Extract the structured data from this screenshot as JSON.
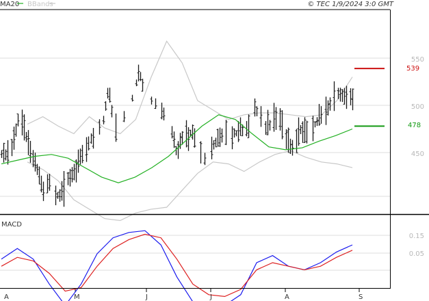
{
  "header": {
    "legend_ma": "MA20",
    "legend_bb": "BBands",
    "copyright": "© TEC 1/9/2024 3:0 GMT"
  },
  "colors": {
    "price_bars": "#1a1a1a",
    "ma20": "#22b022",
    "bbands": "#c8c8c8",
    "macd": "#1a1aee",
    "signal": "#dd2020",
    "resistance": "#cc1010",
    "support": "#119911",
    "grid": "#dcdcdc",
    "frame": "#000000"
  },
  "chart_data": [
    {
      "type": "ohlc",
      "title": "",
      "y_ticks": [
        "450",
        "500",
        "550"
      ],
      "ylim": [
        400,
        600
      ],
      "x_tick_labels": [
        "A",
        "M",
        "J",
        "J",
        "A",
        "S"
      ],
      "series": [
        {
          "name": "MA20",
          "values": [
            438,
            442,
            446,
            448,
            444,
            434,
            424,
            418,
            424,
            434,
            446,
            462,
            478,
            490,
            485,
            470,
            456,
            453,
            455,
            462,
            468,
            475
          ]
        },
        {
          "name": "BBands",
          "values_upper": [
            480,
            488,
            478,
            470,
            488,
            476,
            470,
            485,
            530,
            568,
            545,
            505,
            495,
            485,
            490,
            492,
            492,
            490,
            488,
            490,
            505,
            530
          ],
          "values_lower": [
            440,
            432,
            420,
            400,
            390,
            380,
            378,
            386,
            390,
            392,
            410,
            428,
            440,
            438,
            430,
            440,
            448,
            452,
            445,
            440,
            438,
            434
          ]
        }
      ],
      "levels": [
        {
          "name": "resistance",
          "value": 539,
          "label": "539"
        },
        {
          "name": "support",
          "value": 478,
          "label": "478"
        }
      ]
    },
    {
      "type": "line",
      "title": "MACD",
      "y_ticks": [
        "0.15",
        "0.05"
      ],
      "series": [
        {
          "name": "MACD",
          "values": [
            0.02,
            0.08,
            0.02,
            -0.12,
            -0.24,
            -0.12,
            0.05,
            0.14,
            0.17,
            0.18,
            0.1,
            -0.08,
            -0.22,
            -0.28,
            -0.24,
            -0.18,
            0.0,
            0.04,
            -0.02,
            -0.04,
            0.0,
            0.06,
            0.1
          ]
        },
        {
          "name": "Signal",
          "values": [
            -0.02,
            0.03,
            0.01,
            -0.06,
            -0.16,
            -0.14,
            -0.02,
            0.08,
            0.13,
            0.16,
            0.14,
            0.02,
            -0.12,
            -0.18,
            -0.19,
            -0.15,
            -0.04,
            0.0,
            -0.02,
            -0.04,
            -0.02,
            0.03,
            0.07
          ]
        }
      ]
    }
  ]
}
